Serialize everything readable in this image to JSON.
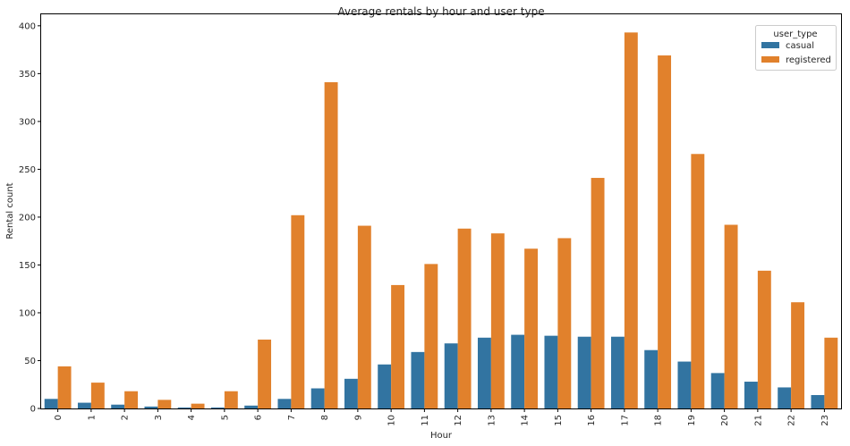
{
  "chart_data": {
    "type": "bar",
    "title": "Average rentals by hour and user type",
    "xlabel": "Hour",
    "ylabel": "Rental count",
    "categories": [
      "0",
      "1",
      "2",
      "3",
      "4",
      "5",
      "6",
      "7",
      "8",
      "9",
      "10",
      "11",
      "12",
      "13",
      "14",
      "15",
      "16",
      "17",
      "18",
      "19",
      "20",
      "21",
      "22",
      "23"
    ],
    "series": [
      {
        "name": "casual",
        "color": "#3274a1",
        "values": [
          10,
          6,
          4,
          2,
          1,
          1,
          3,
          10,
          21,
          31,
          46,
          59,
          68,
          74,
          77,
          76,
          75,
          75,
          61,
          49,
          37,
          28,
          22,
          14
        ]
      },
      {
        "name": "registered",
        "color": "#e1812c",
        "values": [
          44,
          27,
          18,
          9,
          5,
          18,
          72,
          202,
          341,
          191,
          129,
          151,
          188,
          183,
          167,
          178,
          241,
          393,
          369,
          266,
          192,
          144,
          111,
          74
        ]
      }
    ],
    "ylim": [
      0,
      412
    ],
    "yticks": [
      0,
      50,
      100,
      150,
      200,
      250,
      300,
      350,
      400
    ],
    "grid": false,
    "legend": {
      "title": "user_type",
      "placement": "top-right"
    },
    "xtick_rotation": "vertical"
  }
}
